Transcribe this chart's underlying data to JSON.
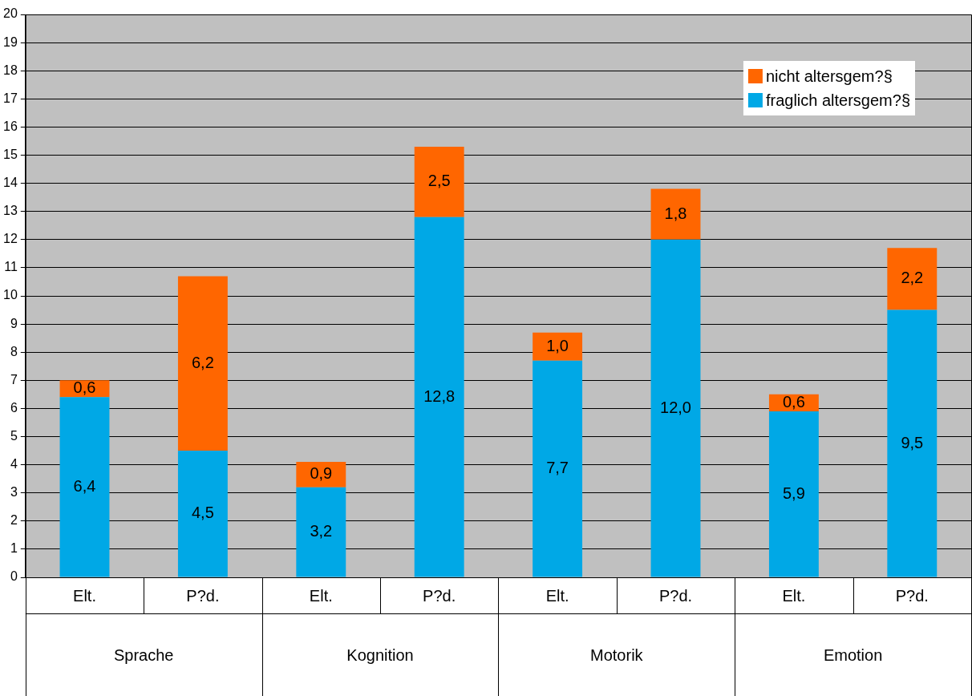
{
  "chart_data": {
    "type": "bar",
    "stacked": true,
    "categories": [
      "Elt.",
      "P?d.",
      "Elt.",
      "P?d.",
      "Elt.",
      "P?d.",
      "Elt.",
      "P?d."
    ],
    "series": [
      {
        "name": "fraglich altersgem?§",
        "color": "#00a8e6",
        "values": [
          6.4,
          4.5,
          3.2,
          12.8,
          7.7,
          12.0,
          5.9,
          9.5
        ],
        "value_labels": [
          "6,4",
          "4,5",
          "3,2",
          "12,8",
          "7,7",
          "12,0",
          "5,9",
          "9,5"
        ]
      },
      {
        "name": "nicht altersgem?§",
        "color": "#ff6600",
        "values": [
          0.6,
          6.2,
          0.9,
          2.5,
          1.0,
          1.8,
          0.6,
          2.2
        ],
        "value_labels": [
          "0,6",
          "6,2",
          "0,9",
          "2,5",
          "1,0",
          "1,8",
          "0,6",
          "2,2"
        ]
      }
    ],
    "annotations": [
      "Sprache",
      "Kognition",
      "Motorik",
      "Emotion"
    ],
    "ylim": [
      0,
      20
    ],
    "yticks": [
      0,
      1,
      2,
      3,
      4,
      5,
      6,
      7,
      8,
      9,
      10,
      11,
      12,
      13,
      14,
      15,
      16,
      17,
      18,
      19,
      20
    ],
    "grid": "y",
    "legend": "top right"
  }
}
